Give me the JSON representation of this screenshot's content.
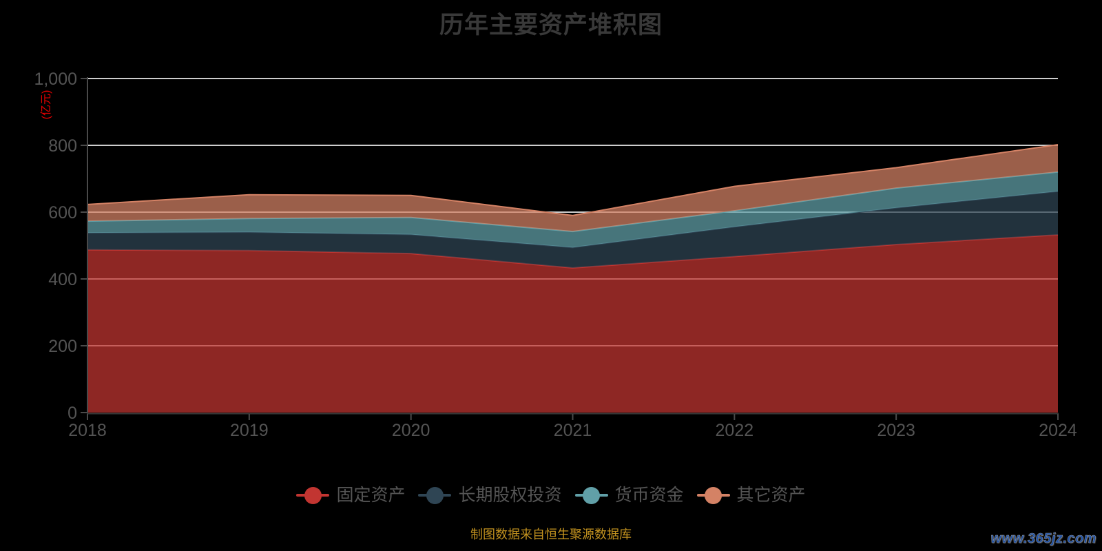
{
  "title": "历年主要资产堆积图",
  "y_axis_name": "(亿元)",
  "footer": "制图数据来自恒生聚源数据库",
  "watermark": "www.365jz.com",
  "colors": {
    "background": "#000000",
    "series": [
      "#c23531",
      "#2f4554",
      "#61a0a8",
      "#d48265"
    ],
    "gridline": "#cdcdcd",
    "axis_line": "#4a4a4a",
    "axis_label": "#545454",
    "title": "#393939",
    "y_axis_name": "#e60000",
    "footer": "#c4931f",
    "watermark": "#1a4fa8"
  },
  "chart_data": {
    "type": "area",
    "stacked": true,
    "title": "历年主要资产堆积图",
    "ylabel": "(亿元)",
    "x": [
      "2018",
      "2019",
      "2020",
      "2021",
      "2022",
      "2023",
      "2024"
    ],
    "series": [
      {
        "name": "固定资产",
        "color": "#c23531",
        "values": [
          487,
          485,
          476,
          433,
          467,
          503,
          532
        ]
      },
      {
        "name": "长期股权投资",
        "color": "#2f4554",
        "values": [
          51,
          55,
          57,
          61,
          89,
          110,
          130
        ]
      },
      {
        "name": "货币资金",
        "color": "#61a0a8",
        "values": [
          35,
          41,
          51,
          48,
          48,
          59,
          58
        ]
      },
      {
        "name": "其它资产",
        "color": "#d48265",
        "values": [
          50,
          71,
          66,
          48,
          73,
          61,
          82
        ]
      }
    ],
    "stack_totals": [
      623,
      652,
      650,
      590,
      677,
      733,
      802
    ],
    "ylim": [
      0,
      1000
    ],
    "y_ticks": [
      "0",
      "200",
      "400",
      "600",
      "800",
      "1,000"
    ],
    "grid": true,
    "area_opacity": 0.73,
    "legend_position": "bottom"
  }
}
